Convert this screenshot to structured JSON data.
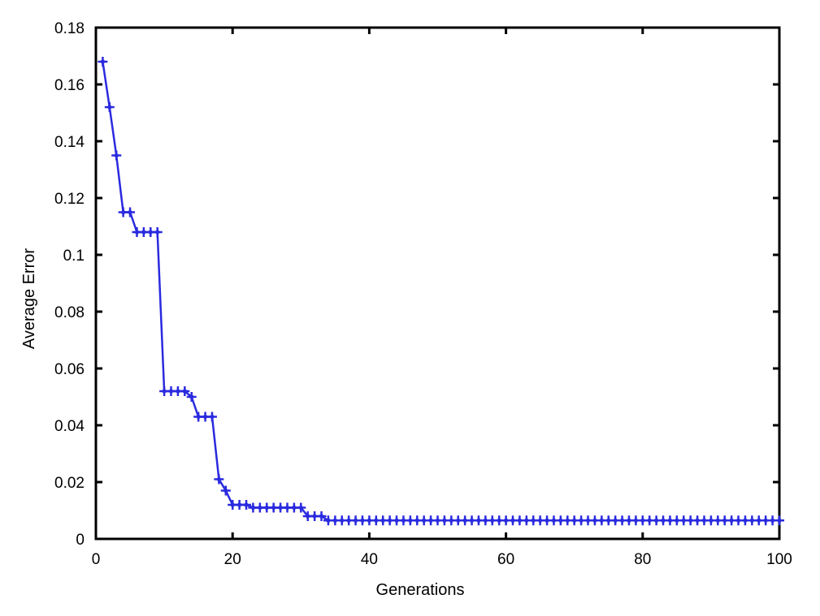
{
  "chart_data": {
    "type": "line",
    "title": "",
    "xlabel": "Generations",
    "ylabel": "Average Error",
    "xlim": [
      0,
      100
    ],
    "ylim": [
      0,
      0.18
    ],
    "xticks": [
      0,
      20,
      40,
      60,
      80,
      100
    ],
    "xtick_labels": [
      "0",
      "20",
      "40",
      "60",
      "80",
      "100"
    ],
    "yticks": [
      0,
      0.02,
      0.04,
      0.06,
      0.08,
      0.1,
      0.12,
      0.14,
      0.16,
      0.18
    ],
    "ytick_labels": [
      "0",
      "0.02",
      "0.04",
      "0.06",
      "0.08",
      "0.1",
      "0.12",
      "0.14",
      "0.16",
      "0.18"
    ],
    "grid": false,
    "legend": "none",
    "series": [
      {
        "color": "#2a2adf",
        "marker": "star",
        "x": [
          1,
          2,
          3,
          4,
          5,
          6,
          7,
          8,
          9,
          10,
          11,
          12,
          13,
          14,
          15,
          16,
          17,
          18,
          19,
          20,
          21,
          22,
          23,
          24,
          25,
          26,
          27,
          28,
          29,
          30,
          31,
          32,
          33,
          34,
          35,
          36,
          37,
          38,
          39,
          40,
          41,
          42,
          43,
          44,
          45,
          46,
          47,
          48,
          49,
          50,
          51,
          52,
          53,
          54,
          55,
          56,
          57,
          58,
          59,
          60,
          61,
          62,
          63,
          64,
          65,
          66,
          67,
          68,
          69,
          70,
          71,
          72,
          73,
          74,
          75,
          76,
          77,
          78,
          79,
          80,
          81,
          82,
          83,
          84,
          85,
          86,
          87,
          88,
          89,
          90,
          91,
          92,
          93,
          94,
          95,
          96,
          97,
          98,
          99,
          100
        ],
        "y": [
          0.168,
          0.152,
          0.135,
          0.115,
          0.115,
          0.108,
          0.108,
          0.108,
          0.108,
          0.052,
          0.052,
          0.052,
          0.052,
          0.05,
          0.043,
          0.043,
          0.043,
          0.021,
          0.017,
          0.012,
          0.012,
          0.012,
          0.011,
          0.011,
          0.011,
          0.011,
          0.011,
          0.011,
          0.011,
          0.011,
          0.008,
          0.008,
          0.008,
          0.0065,
          0.0065,
          0.0065,
          0.0065,
          0.0065,
          0.0065,
          0.0065,
          0.0065,
          0.0065,
          0.0065,
          0.0065,
          0.0065,
          0.0065,
          0.0065,
          0.0065,
          0.0065,
          0.0065,
          0.0065,
          0.0065,
          0.0065,
          0.0065,
          0.0065,
          0.0065,
          0.0065,
          0.0065,
          0.0065,
          0.0065,
          0.0065,
          0.0065,
          0.0065,
          0.0065,
          0.0065,
          0.0065,
          0.0065,
          0.0065,
          0.0065,
          0.0065,
          0.0065,
          0.0065,
          0.0065,
          0.0065,
          0.0065,
          0.0065,
          0.0065,
          0.0065,
          0.0065,
          0.0065,
          0.0065,
          0.0065,
          0.0065,
          0.0065,
          0.0065,
          0.0065,
          0.0065,
          0.0065,
          0.0065,
          0.0065,
          0.0065,
          0.0065,
          0.0065,
          0.0065,
          0.0065,
          0.0065,
          0.0065,
          0.0065,
          0.0065,
          0.0065
        ]
      }
    ]
  }
}
